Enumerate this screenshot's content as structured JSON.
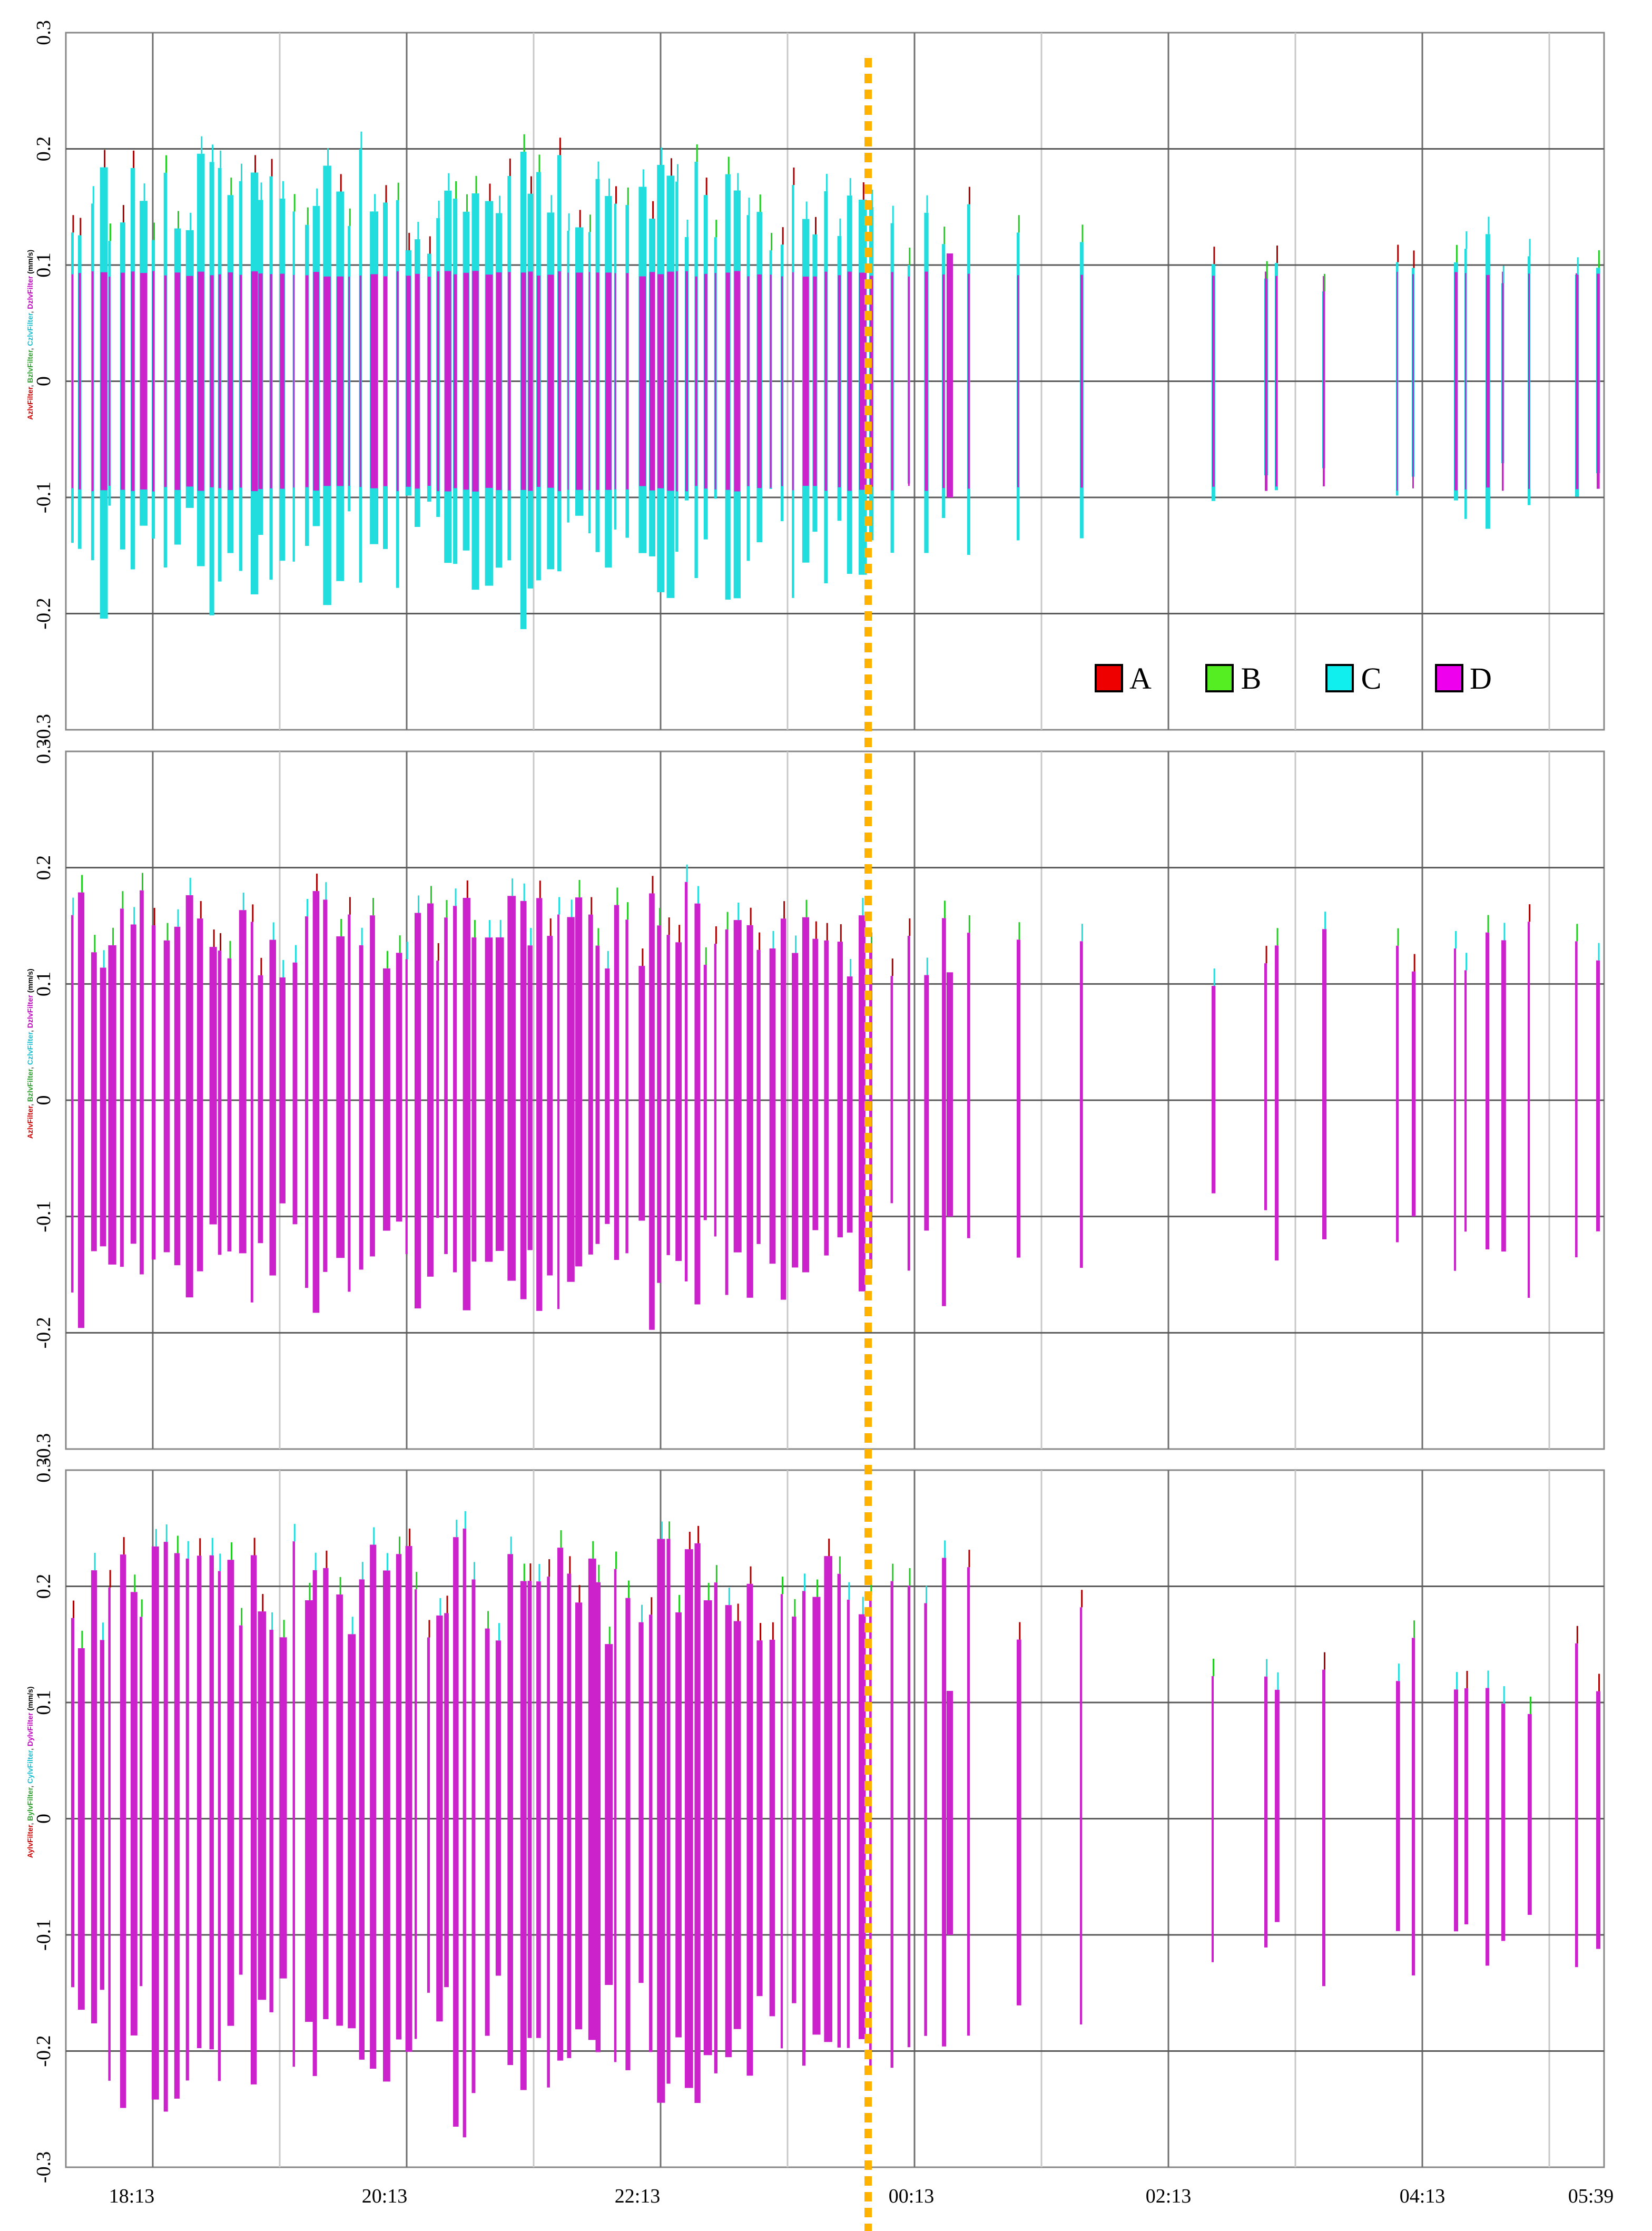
{
  "chart_data": [
    {
      "type": "line",
      "ylabel_parts": [
        {
          "text": "AzlvFilter",
          "color": "#cc0000"
        },
        {
          "text": ", ",
          "color": "#555555"
        },
        {
          "text": "BzlvFilter",
          "color": "#2ca02c"
        },
        {
          "text": ", ",
          "color": "#555555"
        },
        {
          "text": "CzlvFilter",
          "color": "#17becf"
        },
        {
          "text": ", ",
          "color": "#555555"
        },
        {
          "text": "DzlvFilter",
          "color": "#c000c0"
        },
        {
          "text": " (mm/s)",
          "color": "#000000"
        }
      ],
      "ylim": [
        -0.3,
        0.3
      ],
      "yticks": [
        "0.3",
        "0.2",
        "0.1",
        "0",
        "-0.1",
        "-0.2",
        "-0.3"
      ],
      "dominant": "C",
      "envelope": [
        0.16,
        0.16,
        0.17,
        0.16,
        0.15,
        0.16,
        0.17,
        0.14,
        0.15,
        0.16,
        0.17,
        0.16,
        0.15,
        0.16,
        0.16,
        0.14,
        0.15,
        0.14,
        0.13,
        0.14,
        0.13,
        0.12,
        0.12,
        0.11,
        0.1,
        0.1,
        0.11,
        0.1,
        0.1,
        0.11,
        0.1,
        0.11,
        0.1,
        0.11
      ],
      "legend": [
        {
          "label": "A",
          "color": "#ee0000"
        },
        {
          "label": "B",
          "color": "#55ee22"
        },
        {
          "label": "C",
          "color": "#11eeee"
        },
        {
          "label": "D",
          "color": "#ee00ee"
        }
      ]
    },
    {
      "type": "line",
      "ylabel_parts": [
        {
          "text": "AzlvFilter",
          "color": "#cc0000"
        },
        {
          "text": ", ",
          "color": "#555555"
        },
        {
          "text": "BzlvFilter",
          "color": "#2ca02c"
        },
        {
          "text": ", ",
          "color": "#555555"
        },
        {
          "text": "CzlvFilter",
          "color": "#17becf"
        },
        {
          "text": ", ",
          "color": "#555555"
        },
        {
          "text": "DzlvFilter",
          "color": "#c000c0"
        },
        {
          "text": " (mm/s)",
          "color": "#000000"
        }
      ],
      "ylim": [
        -0.3,
        0.3
      ],
      "yticks": [
        "0.3",
        "0.2",
        "0.1",
        "0",
        "-0.1",
        "-0.2",
        "-0.3"
      ],
      "dominant": "D",
      "envelope": [
        0.15,
        0.16,
        0.15,
        0.15,
        0.14,
        0.15,
        0.16,
        0.15,
        0.16,
        0.15,
        0.16,
        0.15,
        0.15,
        0.16,
        0.15,
        0.14,
        0.14,
        0.14,
        0.14,
        0.14,
        0.15,
        0.14,
        0.14,
        0.13,
        0.14,
        0.13,
        0.14,
        0.13,
        0.13,
        0.14,
        0.13,
        0.14,
        0.13,
        0.14
      ]
    },
    {
      "type": "line",
      "ylabel_parts": [
        {
          "text": "AylvFilter",
          "color": "#cc0000"
        },
        {
          "text": ", ",
          "color": "#555555"
        },
        {
          "text": "BylvFilter",
          "color": "#2ca02c"
        },
        {
          "text": ", ",
          "color": "#555555"
        },
        {
          "text": "CylvFilter",
          "color": "#17becf"
        },
        {
          "text": ", ",
          "color": "#555555"
        },
        {
          "text": "DylvFilter",
          "color": "#c000c0"
        },
        {
          "text": " (mm/s)",
          "color": "#000000"
        }
      ],
      "ylim": [
        -0.3,
        0.3
      ],
      "yticks": [
        "0.3",
        "0.2",
        "0.1",
        "0",
        "-0.1",
        "-0.2",
        "-0.3"
      ],
      "dominant": "D",
      "envelope": [
        0.19,
        0.2,
        0.21,
        0.2,
        0.19,
        0.2,
        0.21,
        0.2,
        0.21,
        0.2,
        0.21,
        0.2,
        0.2,
        0.21,
        0.2,
        0.19,
        0.2,
        0.19,
        0.18,
        0.19,
        0.18,
        0.17,
        0.16,
        0.15,
        0.14,
        0.13,
        0.13,
        0.12,
        0.12,
        0.13,
        0.12,
        0.13,
        0.12,
        0.13
      ]
    }
  ],
  "x_axis": {
    "ticks": [
      "18:13",
      "20:13",
      "22:13",
      "00:13",
      "02:13",
      "04:13",
      "05:39"
    ]
  },
  "colors": {
    "A": "#aa0000",
    "B": "#22cc22",
    "C": "#22dddd",
    "D": "#cc22cc",
    "marker": "#ffb300"
  }
}
